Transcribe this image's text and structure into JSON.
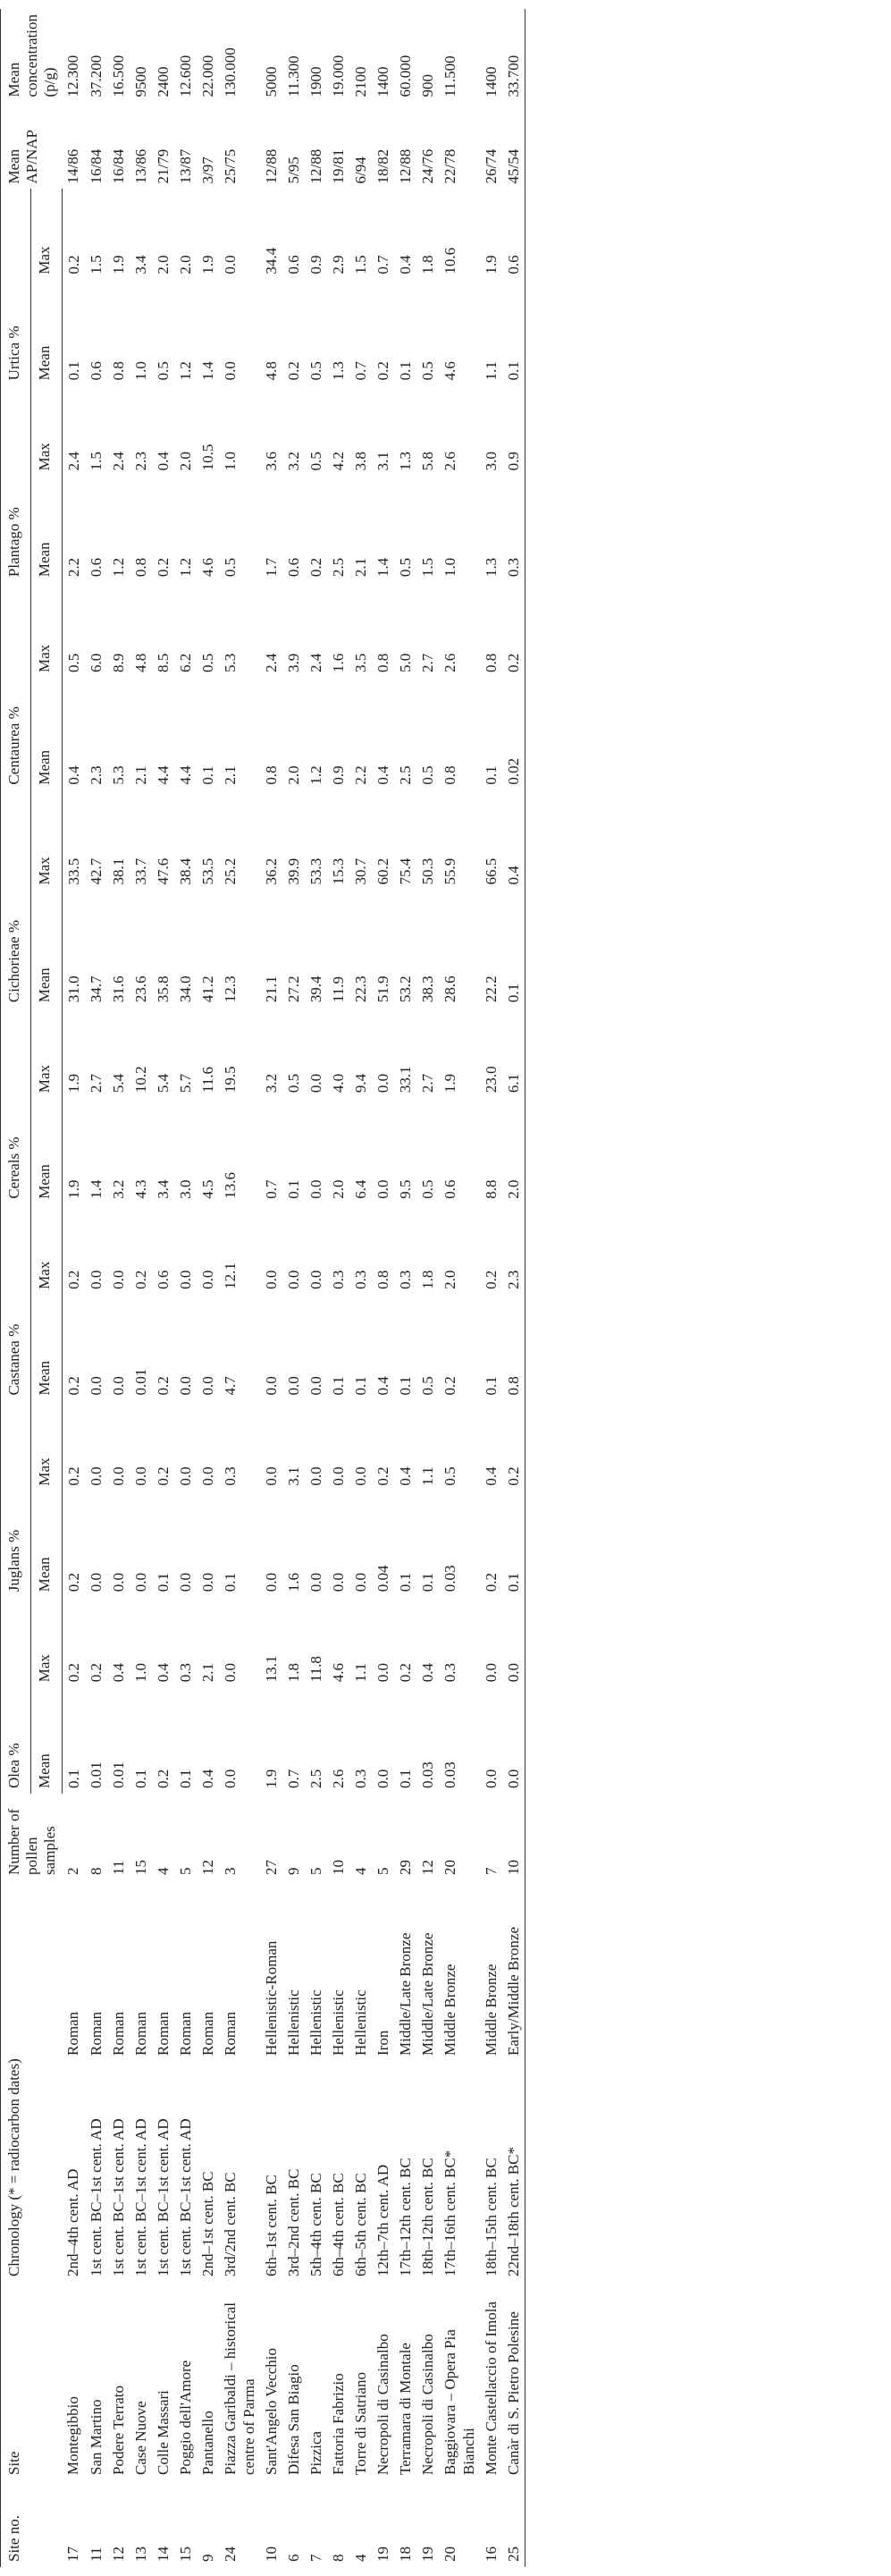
{
  "table": {
    "header": {
      "site_no": "Site no.",
      "site": "Site",
      "chronology": "Chronology (* = radiocarbon dates)",
      "samples": "Number of pollen samples",
      "taxa": [
        "Olea %",
        "Juglans %",
        "Castanea %",
        "Cereals %",
        "Cichorieae %",
        "Centaurea %",
        "Plantago %",
        "Urtica %"
      ],
      "sub": [
        "Mean",
        "Max",
        "Mean",
        "Max",
        "Mean",
        "Max",
        "Mean",
        "Max",
        "Mean",
        "Max",
        "Mean",
        "Max",
        "Mean",
        "Max",
        "Mean",
        "Max"
      ],
      "ap_nap": "Mean AP/NAP",
      "concentration": "Mean concentration (p/g)"
    },
    "rows": [
      [
        "17",
        "Montegibbio",
        "2nd–4th cent. AD",
        "Roman",
        "2",
        "0.1",
        "0.2",
        "0.2",
        "0.2",
        "0.2",
        "0.2",
        "1.9",
        "1.9",
        "31.0",
        "33.5",
        "0.4",
        "0.5",
        "2.2",
        "2.4",
        "0.1",
        "0.2",
        "14/86",
        "12.300"
      ],
      [
        "11",
        "San Martino",
        "1st cent. BC–1st cent. AD",
        "Roman",
        "8",
        "0.01",
        "0.2",
        "0.0",
        "0.0",
        "0.0",
        "0.0",
        "1.4",
        "2.7",
        "34.7",
        "42.7",
        "2.3",
        "6.0",
        "0.6",
        "1.5",
        "0.6",
        "1.5",
        "16/84",
        "37.200"
      ],
      [
        "12",
        "Podere Terrato",
        "1st cent. BC–1st cent. AD",
        "Roman",
        "11",
        "0.01",
        "0.4",
        "0.0",
        "0.0",
        "0.0",
        "0.0",
        "3.2",
        "5.4",
        "31.6",
        "38.1",
        "5.3",
        "8.9",
        "1.2",
        "2.4",
        "0.8",
        "1.9",
        "16/84",
        "16.500"
      ],
      [
        "13",
        "Case Nuove",
        "1st cent. BC–1st cent. AD",
        "Roman",
        "15",
        "0.1",
        "1.0",
        "0.0",
        "0.0",
        "0.01",
        "0.2",
        "4.3",
        "10.2",
        "23.6",
        "33.7",
        "2.1",
        "4.8",
        "0.8",
        "2.3",
        "1.0",
        "3.4",
        "13/86",
        "9500"
      ],
      [
        "14",
        "Colle Massari",
        "1st cent. BC–1st cent. AD",
        "Roman",
        "4",
        "0.2",
        "0.4",
        "0.1",
        "0.2",
        "0.2",
        "0.6",
        "3.4",
        "5.4",
        "35.8",
        "47.6",
        "4.4",
        "8.5",
        "0.2",
        "0.4",
        "0.5",
        "2.0",
        "21/79",
        "2400"
      ],
      [
        "15",
        "Poggio dell'Amore",
        "1st cent. BC–1st cent. AD",
        "Roman",
        "5",
        "0.1",
        "0.3",
        "0.0",
        "0.0",
        "0.0",
        "0.0",
        "3.0",
        "5.7",
        "34.0",
        "38.4",
        "4.4",
        "6.2",
        "1.2",
        "2.0",
        "1.2",
        "2.0",
        "13/87",
        "12.600"
      ],
      [
        "9",
        "Pantanello",
        "2nd–1st cent. BC",
        "Roman",
        "12",
        "0.4",
        "2.1",
        "0.0",
        "0.0",
        "0.0",
        "0.0",
        "4.5",
        "11.6",
        "41.2",
        "53.5",
        "0.1",
        "0.5",
        "4.6",
        "10.5",
        "1.4",
        "1.9",
        "3/97",
        "22.000"
      ],
      [
        "24",
        "Piazza Garibaldi – historical centre of Parma",
        "3rd/2nd cent. BC",
        "Roman",
        "3",
        "0.0",
        "0.0",
        "0.1",
        "0.3",
        "4.7",
        "12.1",
        "13.6",
        "19.5",
        "12.3",
        "25.2",
        "2.1",
        "5.3",
        "0.5",
        "1.0",
        "0.0",
        "0.0",
        "25/75",
        "130.000"
      ],
      [
        "10",
        "Sant'Angelo Vecchio",
        "6th–1st cent. BC",
        "Hellenistic-Roman",
        "27",
        "1.9",
        "13.1",
        "0.0",
        "0.0",
        "0.0",
        "0.0",
        "0.7",
        "3.2",
        "21.1",
        "36.2",
        "0.8",
        "2.4",
        "1.7",
        "3.6",
        "4.8",
        "34.4",
        "12/88",
        "5000"
      ],
      [
        "6",
        "Difesa San Biagio",
        "3rd–2nd cent. BC",
        "Hellenistic",
        "9",
        "0.7",
        "1.8",
        "1.6",
        "3.1",
        "0.0",
        "0.0",
        "0.1",
        "0.5",
        "27.2",
        "39.9",
        "2.0",
        "3.9",
        "0.6",
        "3.2",
        "0.2",
        "0.6",
        "5/95",
        "11.300"
      ],
      [
        "7",
        "Pizzica",
        "5th–4th cent. BC",
        "Hellenistic",
        "5",
        "2.5",
        "11.8",
        "0.0",
        "0.0",
        "0.0",
        "0.0",
        "0.0",
        "0.0",
        "39.4",
        "53.3",
        "1.2",
        "2.4",
        "0.2",
        "0.5",
        "0.5",
        "0.9",
        "12/88",
        "1900"
      ],
      [
        "8",
        "Fattoria Fabrizio",
        "6th–4th cent. BC",
        "Hellenistic",
        "10",
        "2.6",
        "4.6",
        "0.0",
        "0.0",
        "0.1",
        "0.3",
        "2.0",
        "4.0",
        "11.9",
        "15.3",
        "0.9",
        "1.6",
        "2.5",
        "4.2",
        "1.3",
        "2.9",
        "19/81",
        "19.000"
      ],
      [
        "4",
        "Torre di Satriano",
        "6th–5th cent. BC",
        "Hellenistic",
        "4",
        "0.3",
        "1.1",
        "0.0",
        "0.0",
        "0.1",
        "0.3",
        "6.4",
        "9.4",
        "22.3",
        "30.7",
        "2.2",
        "3.5",
        "2.1",
        "3.8",
        "0.7",
        "1.5",
        "6/94",
        "2100"
      ],
      [
        "19",
        "Necropoli di Casinalbo",
        "12th–7th cent. AD",
        "Iron",
        "5",
        "0.0",
        "0.0",
        "0.04",
        "0.2",
        "0.4",
        "0.8",
        "0.0",
        "0.0",
        "51.9",
        "60.2",
        "0.4",
        "0.8",
        "1.4",
        "3.1",
        "0.2",
        "0.7",
        "18/82",
        "1400"
      ],
      [
        "18",
        "Terramara di Montale",
        "17th–12th cent. BC",
        "Middle/Late Bronze",
        "29",
        "0.1",
        "0.2",
        "0.1",
        "0.4",
        "0.1",
        "0.3",
        "9.5",
        "33.1",
        "53.2",
        "75.4",
        "2.5",
        "5.0",
        "0.5",
        "1.3",
        "0.1",
        "0.4",
        "12/88",
        "60.000"
      ],
      [
        "19",
        "Necropoli di Casinalbo",
        "18th–12th cent. BC",
        "Middle/Late Bronze",
        "12",
        "0.03",
        "0.4",
        "0.1",
        "1.1",
        "0.5",
        "1.8",
        "0.5",
        "2.7",
        "38.3",
        "50.3",
        "0.5",
        "2.7",
        "1.5",
        "5.8",
        "0.5",
        "1.8",
        "24/76",
        "900"
      ],
      [
        "20",
        "Baggiovara – Opera Pia Bianchi",
        "17th–16th cent. BC*",
        "Middle Bronze",
        "20",
        "0.03",
        "0.3",
        "0.03",
        "0.5",
        "0.2",
        "2.0",
        "0.6",
        "1.9",
        "28.6",
        "55.9",
        "0.8",
        "2.6",
        "1.0",
        "2.6",
        "4.6",
        "10.6",
        "22/78",
        "11.500"
      ],
      [
        "16",
        "Monte Castellaccio of Imola",
        "18th–15th cent. BC",
        "Middle Bronze",
        "7",
        "0.0",
        "0.0",
        "0.2",
        "0.4",
        "0.1",
        "0.2",
        "8.8",
        "23.0",
        "22.2",
        "66.5",
        "0.1",
        "0.8",
        "1.3",
        "3.0",
        "1.1",
        "1.9",
        "26/74",
        "1400"
      ],
      [
        "25",
        "Canàr di S. Pietro Polesine",
        "22nd–18th cent. BC*",
        "Early/Middle Bronze",
        "10",
        "0.0",
        "0.0",
        "0.1",
        "0.2",
        "0.8",
        "2.3",
        "2.0",
        "6.1",
        "0.1",
        "0.4",
        "0.02",
        "0.2",
        "0.3",
        "0.9",
        "0.1",
        "0.6",
        "45/54",
        "33.700"
      ]
    ]
  }
}
